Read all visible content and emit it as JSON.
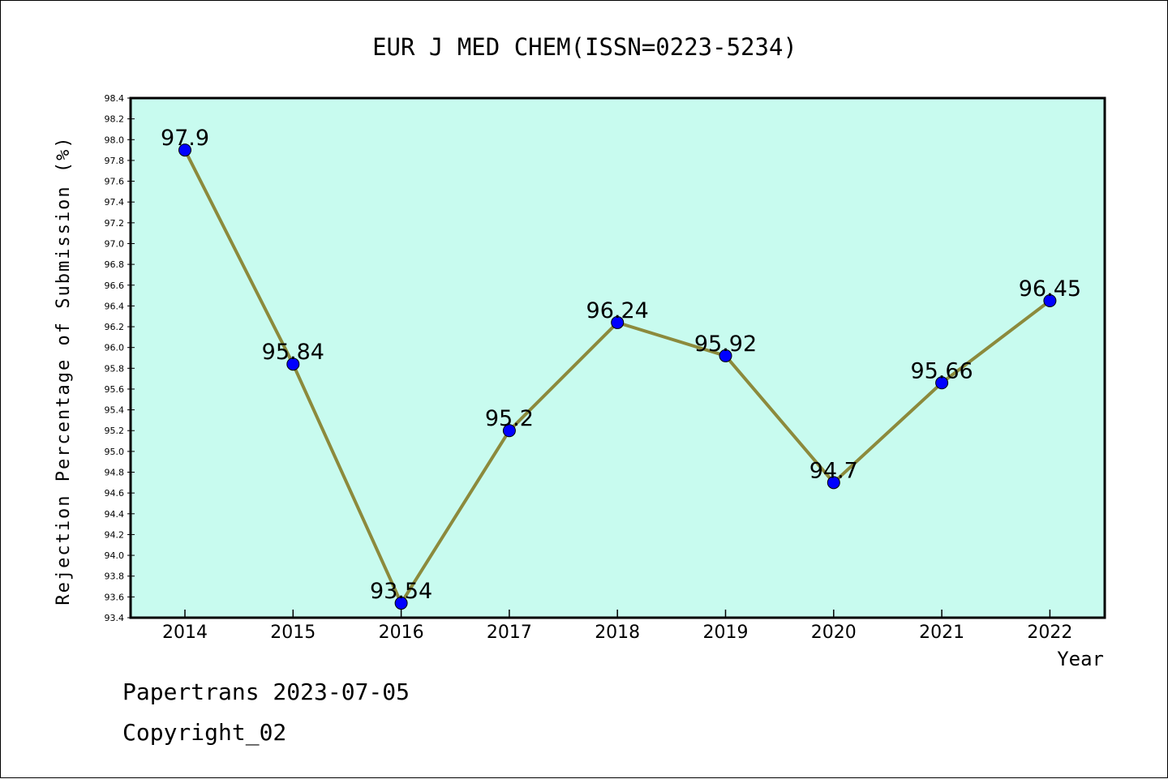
{
  "chart_data": {
    "type": "line",
    "title": "EUR J MED CHEM(ISSN=0223-5234)",
    "xlabel": "Year",
    "ylabel": "Rejection Percentage of Submission (%)",
    "categories": [
      "2014",
      "2015",
      "2016",
      "2017",
      "2018",
      "2019",
      "2020",
      "2021",
      "2022"
    ],
    "values": [
      97.9,
      95.84,
      93.54,
      95.2,
      96.24,
      95.92,
      94.7,
      95.66,
      96.45
    ],
    "data_labels": [
      "97.9",
      "95.84",
      "93.54",
      "95.2",
      "96.24",
      "95.92",
      "94.7",
      "95.66",
      "96.45"
    ],
    "ylim": [
      93.4,
      98.4
    ],
    "y_ticks": [
      "93.4",
      "93.6",
      "93.8",
      "94.0",
      "94.2",
      "94.4",
      "94.6",
      "94.8",
      "95.0",
      "95.2",
      "95.4",
      "95.6",
      "95.8",
      "96.0",
      "96.2",
      "96.4",
      "96.6",
      "96.8",
      "97.0",
      "97.2",
      "97.4",
      "97.6",
      "97.8",
      "98.0",
      "98.2",
      "98.4"
    ],
    "grid": false,
    "colors": {
      "plot_background": "#c8fbef",
      "line": "#8c8a3c",
      "marker": "#0000ff"
    }
  },
  "footer": {
    "line1": "Papertrans 2023-07-05",
    "line2": "Copyright_02"
  }
}
